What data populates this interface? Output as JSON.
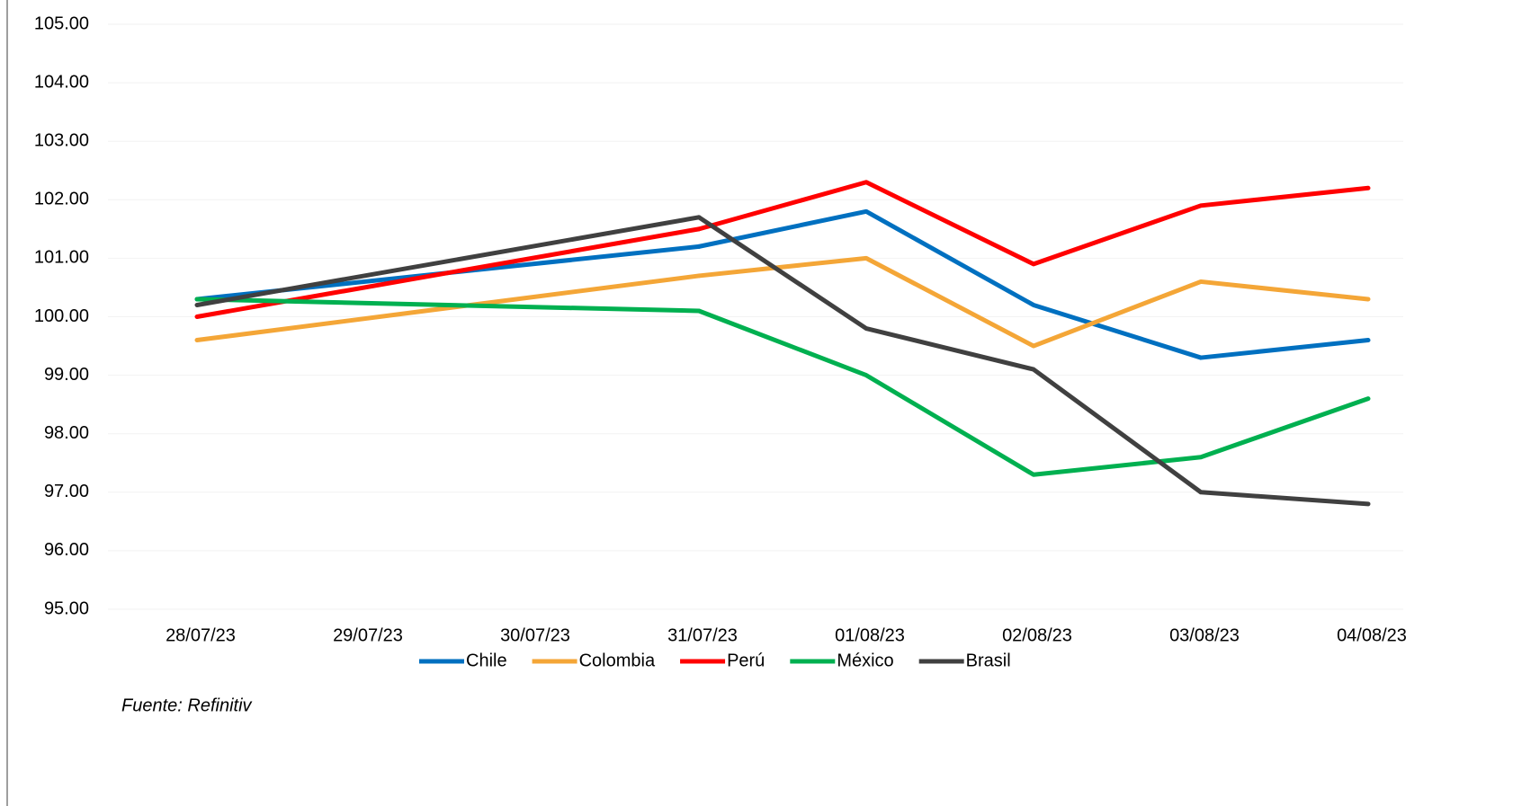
{
  "chart_data": {
    "type": "line",
    "source": "Fuente: Refinitiv",
    "categories": [
      "28/07/23",
      "29/07/23",
      "30/07/23",
      "31/07/23",
      "01/08/23",
      "02/08/23",
      "03/08/23",
      "04/08/23"
    ],
    "connect_gaps": true,
    "series": [
      {
        "name": "Chile",
        "color": "#0070c0",
        "values": [
          100.3,
          null,
          null,
          101.2,
          101.8,
          100.2,
          99.3,
          99.6
        ]
      },
      {
        "name": "Colombia",
        "color": "#f4a637",
        "values": [
          99.6,
          null,
          null,
          100.7,
          101.0,
          99.5,
          100.6,
          100.3
        ]
      },
      {
        "name": "Perú",
        "color": "#ff0000",
        "values": [
          100.0,
          null,
          null,
          101.5,
          102.3,
          100.9,
          101.9,
          102.2
        ]
      },
      {
        "name": "México",
        "color": "#00b050",
        "values": [
          100.3,
          null,
          null,
          100.1,
          99.0,
          97.3,
          97.6,
          98.6
        ]
      },
      {
        "name": "Brasil",
        "color": "#404040",
        "values": [
          100.2,
          null,
          null,
          101.7,
          99.8,
          99.1,
          97.0,
          96.8
        ]
      }
    ],
    "ylim": [
      95,
      105
    ],
    "yticks": [
      {
        "value": 95,
        "label": "95.00"
      },
      {
        "value": 96,
        "label": "96.00"
      },
      {
        "value": 97,
        "label": "97.00"
      },
      {
        "value": 98,
        "label": "98.00"
      },
      {
        "value": 99,
        "label": "99.00"
      },
      {
        "value": 100,
        "label": "100.00"
      },
      {
        "value": 101,
        "label": "101.00"
      },
      {
        "value": 102,
        "label": "102.00"
      },
      {
        "value": 103,
        "label": "103.00"
      },
      {
        "value": 104,
        "label": "104.00"
      },
      {
        "value": 105,
        "label": "105.00"
      }
    ],
    "grid": true,
    "legend": "bottom"
  }
}
